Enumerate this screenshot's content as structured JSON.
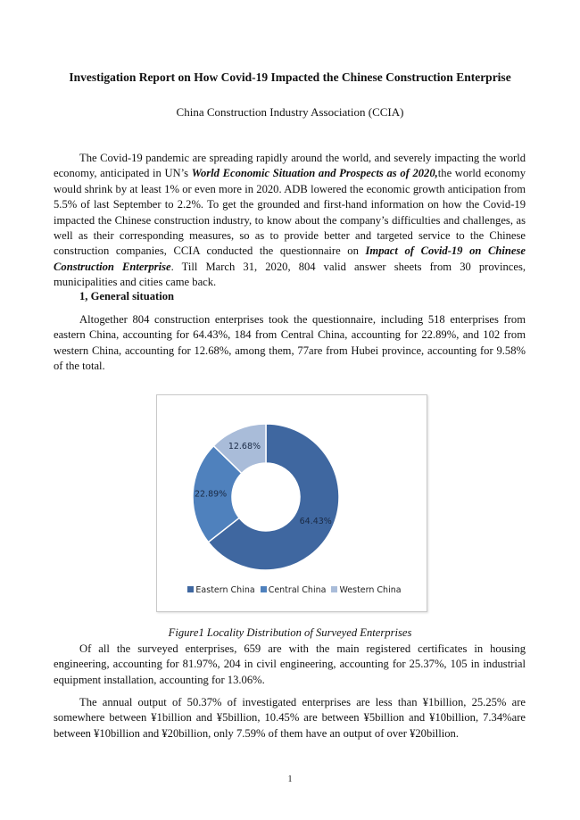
{
  "title": "Investigation Report on How Covid-19 Impacted the Chinese Construction Enterprise",
  "author": "China Construction Industry Association (CCIA)",
  "p1": {
    "a": "The Covid-19 pandemic are spreading rapidly around the world, and severely impacting the world economy, anticipated in UN’s ",
    "b": "World Economic Situation and Prospects as of 2020,",
    "c": "the world economy would shrink by at least 1% or even more in 2020. ADB lowered the economic growth anticipation from 5.5% of last September to 2.2%. To get the grounded and first-hand information on how the Covid-19 impacted the Chinese construction industry, to know about the company’s difficulties and challenges, as well as their corresponding measures, so as to provide better and targeted service to the Chinese construction companies, CCIA conducted the questionnaire on ",
    "d": "Impact of Covid-19 on Chinese Construction Enterprise",
    "e": ". Till March 31, 2020, 804 valid answer sheets from 30 provinces, municipalities and cities came back."
  },
  "heading1": "1, General situation",
  "p2": "Altogether 804 construction enterprises took the questionnaire, including 518 enterprises from eastern China, accounting for 64.43%, 184 from Central China, accounting for 22.89%, and 102 from western China, accounting for 12.68%, among them, 77are from Hubei province, accounting for 9.58% of the total.",
  "chart_data": {
    "type": "pie",
    "donut": true,
    "categories": [
      "Eastern China",
      "Central China",
      "Western China"
    ],
    "values": [
      64.43,
      22.89,
      12.68
    ],
    "labels": [
      "64.43%",
      "22.89%",
      "12.68%"
    ],
    "colors": [
      "#3f67a0",
      "#4f81bd",
      "#a9bcd9"
    ],
    "legend": "bottom"
  },
  "caption": "Figure1 Locality Distribution of Surveyed Enterprises",
  "p3": "Of all the surveyed enterprises, 659 are with the main registered certificates in housing engineering, accounting for 81.97%, 204 in civil engineering, accounting for 25.37%, 105 in industrial equipment installation, accounting for 13.06%.",
  "p4": "The annual output of 50.37% of investigated enterprises are less than ¥1billion, 25.25% are somewhere between ¥1billion and ¥5billion, 10.45% are between ¥5billion and ¥10billion, 7.34%are between ¥10billion and ¥20billion, only 7.59% of them have an output of over ¥20billion.",
  "page_number": "1"
}
